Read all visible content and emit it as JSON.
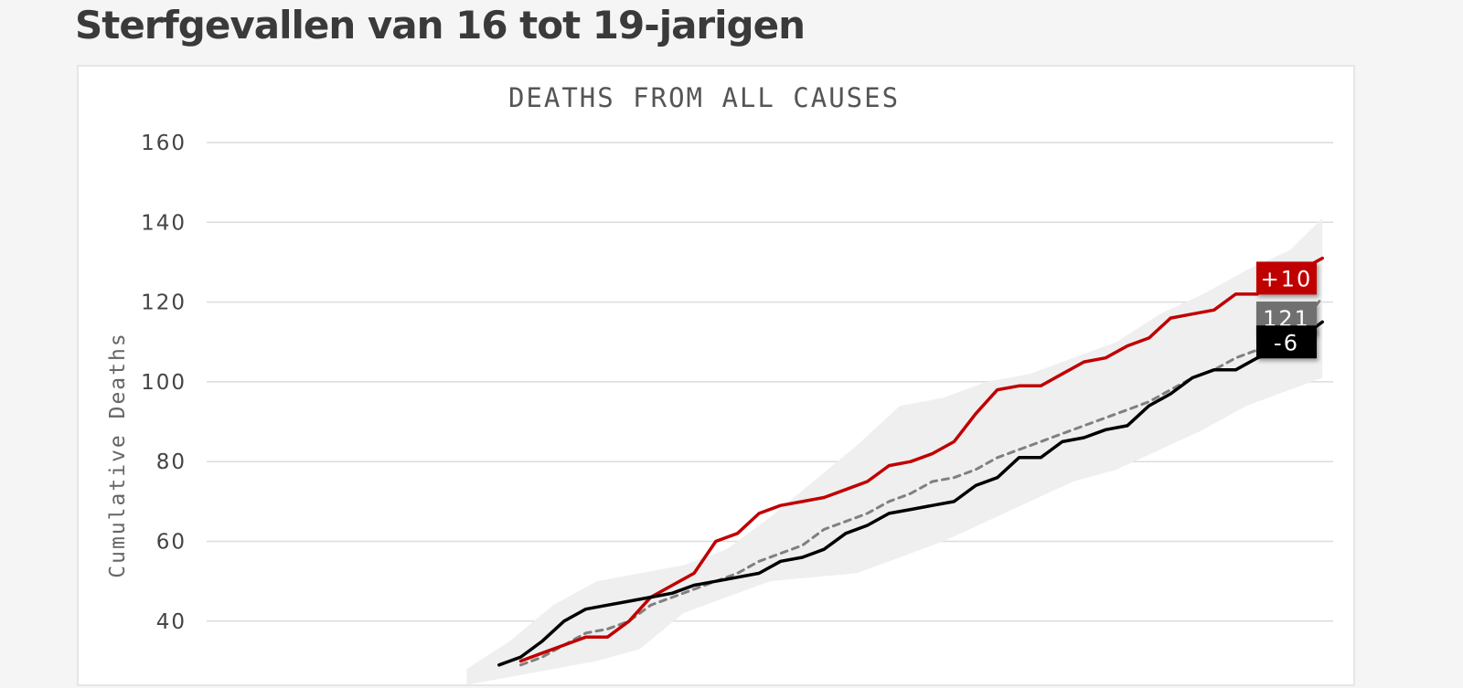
{
  "page": {
    "title": "Sterfgevallen van 16 tot 19-jarigen"
  },
  "chart_data": {
    "type": "line",
    "title": "DEATHS FROM ALL CAUSES",
    "xlabel": "",
    "ylabel": "Cumulative Deaths",
    "ylim": [
      28,
      168
    ],
    "xlim": [
      0,
      52
    ],
    "yticks": [
      40,
      60,
      80,
      100,
      120,
      140,
      160
    ],
    "grid": true,
    "series": [
      {
        "role": "actual-2021",
        "color": "#c00000",
        "style": "solid",
        "x": [
          14.5,
          15.5,
          16.5,
          17.5,
          18.5,
          19.5,
          20.5,
          21.5,
          22.5,
          23.5,
          24.5,
          25.5,
          26.5,
          27.5,
          28.5,
          29.5,
          30.5,
          31.5,
          32.5,
          33.5,
          34.5,
          35.5,
          36.5,
          37.5,
          38.5,
          39.5,
          40.5,
          41.5,
          42.5,
          43.5,
          44.5,
          45.5,
          46.5,
          47.5,
          48.5,
          49.5,
          50.5,
          51.5
        ],
        "y": [
          30,
          32,
          34,
          36,
          36,
          40,
          46,
          49,
          52,
          60,
          62,
          67,
          69,
          70,
          71,
          73,
          75,
          79,
          80,
          82,
          85,
          92,
          98,
          99,
          99,
          102,
          105,
          106,
          109,
          111,
          116,
          117,
          118,
          122,
          122,
          126,
          128,
          131
        ]
      },
      {
        "role": "expected",
        "color": "#808080",
        "style": "dashed",
        "x": [
          14.5,
          15.5,
          16.5,
          17.5,
          18.5,
          19.5,
          20.5,
          21.5,
          22.5,
          23.5,
          24.5,
          25.5,
          26.5,
          27.5,
          28.5,
          29.5,
          30.5,
          31.5,
          32.5,
          33.5,
          34.5,
          35.5,
          36.5,
          37.5,
          38.5,
          39.5,
          40.5,
          41.5,
          42.5,
          43.5,
          44.5,
          45.5,
          46.5,
          47.5,
          48.5,
          49.5,
          50.5,
          51.5
        ],
        "y": [
          29,
          31,
          34,
          37,
          38,
          40,
          44,
          46,
          48,
          50,
          52,
          55,
          57,
          59,
          63,
          65,
          67,
          70,
          72,
          75,
          76,
          78,
          81,
          83,
          85,
          87,
          89,
          91,
          93,
          95,
          98,
          101,
          103,
          106,
          108,
          110,
          115,
          121
        ]
      },
      {
        "role": "actual-2020",
        "color": "#000000",
        "style": "solid",
        "x": [
          13.5,
          14.5,
          15.5,
          16.5,
          17.5,
          18.5,
          19.5,
          20.5,
          21.5,
          22.5,
          23.5,
          24.5,
          25.5,
          26.5,
          27.5,
          28.5,
          29.5,
          30.5,
          31.5,
          32.5,
          33.5,
          34.5,
          35.5,
          36.5,
          37.5,
          38.5,
          39.5,
          40.5,
          41.5,
          42.5,
          43.5,
          44.5,
          45.5,
          46.5,
          47.5,
          48.5,
          49.5,
          50.5,
          51.5
        ],
        "y": [
          29,
          31,
          35,
          40,
          43,
          44,
          45,
          46,
          47,
          49,
          50,
          51,
          52,
          55,
          56,
          58,
          62,
          64,
          67,
          68,
          69,
          70,
          74,
          76,
          81,
          81,
          85,
          86,
          88,
          89,
          94,
          97,
          101,
          103,
          103,
          106,
          108,
          111,
          115
        ]
      }
    ],
    "band": {
      "color": "#efefef",
      "x": [
        12,
        14,
        16,
        18,
        20,
        22,
        24,
        26,
        28,
        30,
        32,
        34,
        36,
        38,
        40,
        42,
        44,
        46,
        48,
        50,
        51.5
      ],
      "upper": [
        28,
        35,
        44,
        50,
        52,
        54,
        58,
        66,
        75,
        84,
        94,
        96,
        100,
        102,
        106,
        110,
        117,
        122,
        128,
        133,
        141
      ],
      "lower": [
        24,
        26,
        28,
        30,
        33,
        42,
        46,
        50,
        51,
        52,
        56,
        60,
        65,
        70,
        75,
        78,
        83,
        88,
        94,
        98,
        101
      ]
    },
    "annotations": [
      {
        "text": "+10",
        "bg": "#c00000",
        "color": "#ffffff",
        "y": 126
      },
      {
        "text": "121",
        "bg": "#707070",
        "color": "#ffffff",
        "y": 116
      },
      {
        "text": "-6",
        "bg": "#000000",
        "color": "#ffffff",
        "y": 110
      }
    ]
  }
}
